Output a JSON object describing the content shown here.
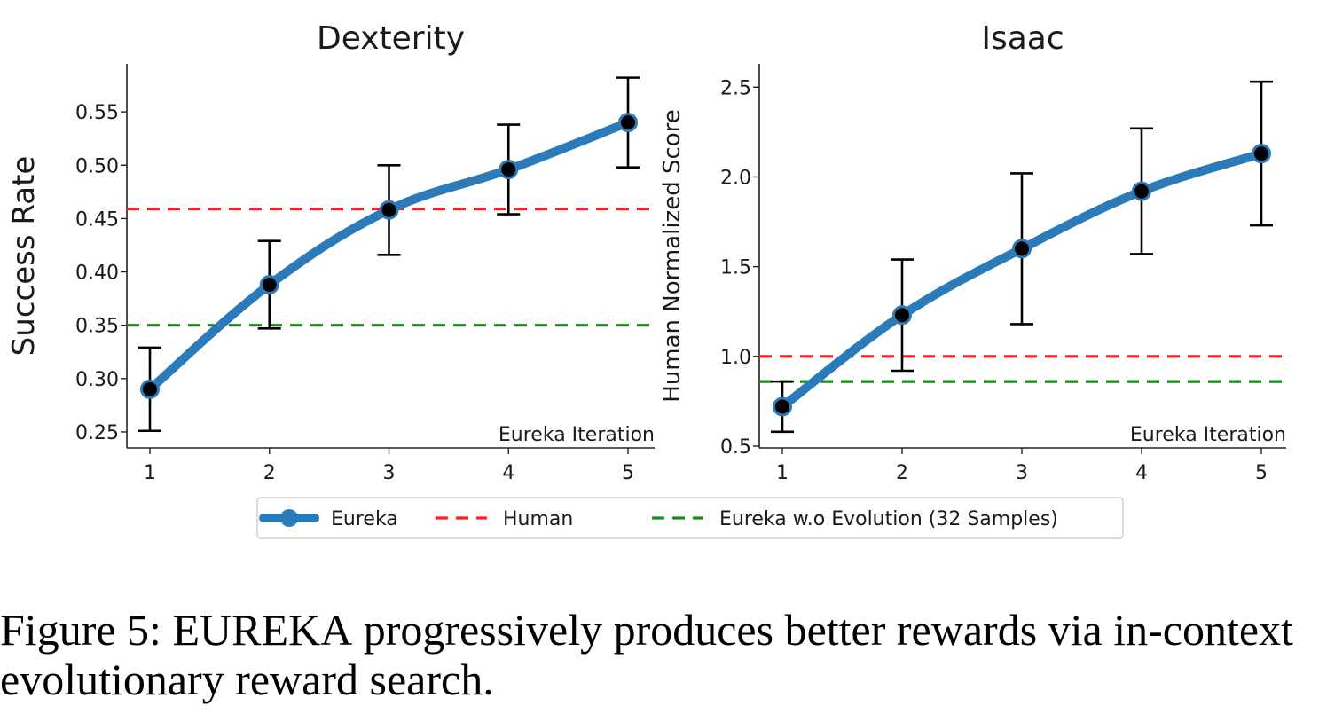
{
  "chart_data": [
    {
      "type": "line",
      "title": "Dexterity",
      "xlabel": "Eureka Iteration",
      "ylabel": "Success Rate",
      "x": [
        1,
        2,
        3,
        4,
        5
      ],
      "xticks": [
        "1",
        "2",
        "3",
        "4",
        "5"
      ],
      "ylim": [
        0.235,
        0.595
      ],
      "yticks": [
        "0.25",
        "0.30",
        "0.35",
        "0.40",
        "0.45",
        "0.50",
        "0.55"
      ],
      "ytick_values": [
        0.25,
        0.3,
        0.35,
        0.4,
        0.45,
        0.5,
        0.55
      ],
      "series": [
        {
          "name": "Eureka",
          "values": [
            0.29,
            0.388,
            0.458,
            0.496,
            0.54
          ],
          "err": [
            0.039,
            0.041,
            0.042,
            0.042,
            0.042
          ]
        }
      ],
      "reference_lines": [
        {
          "name": "Human",
          "value": 0.459,
          "color": "#ff1f1f"
        },
        {
          "name": "Eureka w.o Evolution (32 Samples)",
          "value": 0.35,
          "color": "#1a8a1a"
        }
      ]
    },
    {
      "type": "line",
      "title": "Isaac",
      "xlabel": "Eureka Iteration",
      "ylabel": "Human Normalized Score",
      "x": [
        1,
        2,
        3,
        4,
        5
      ],
      "xticks": [
        "1",
        "2",
        "3",
        "4",
        "5"
      ],
      "ylim": [
        0.49,
        2.63
      ],
      "yticks": [
        "0.5",
        "1.0",
        "1.5",
        "2.0",
        "2.5"
      ],
      "ytick_values": [
        0.5,
        1.0,
        1.5,
        2.0,
        2.5
      ],
      "series": [
        {
          "name": "Eureka",
          "values": [
            0.72,
            1.23,
            1.6,
            1.92,
            2.13
          ],
          "err": [
            0.14,
            0.31,
            0.42,
            0.35,
            0.4
          ]
        }
      ],
      "reference_lines": [
        {
          "name": "Human",
          "value": 1.0,
          "color": "#ff1f1f"
        },
        {
          "name": "Eureka w.o Evolution (32 Samples)",
          "value": 0.86,
          "color": "#1a8a1a"
        }
      ]
    }
  ],
  "colors": {
    "series": "#2b7bba",
    "marker": "#000000",
    "human": "#ff1f1f",
    "no_evolution": "#1a8a1a"
  },
  "legend": {
    "placement": "bottom-center",
    "items": [
      {
        "label": "Eureka",
        "style": "line-marker",
        "color": "#2b7bba"
      },
      {
        "label": "Human",
        "style": "dashed",
        "color": "#ff1f1f"
      },
      {
        "label": "Eureka w.o Evolution (32 Samples)",
        "style": "dashed",
        "color": "#1a8a1a"
      }
    ]
  },
  "caption": {
    "label": "Figure 5:",
    "name_first": "E",
    "name_rest": "UREKA",
    "text": "progressively produces better rewards via in-context evolutionary reward search."
  }
}
